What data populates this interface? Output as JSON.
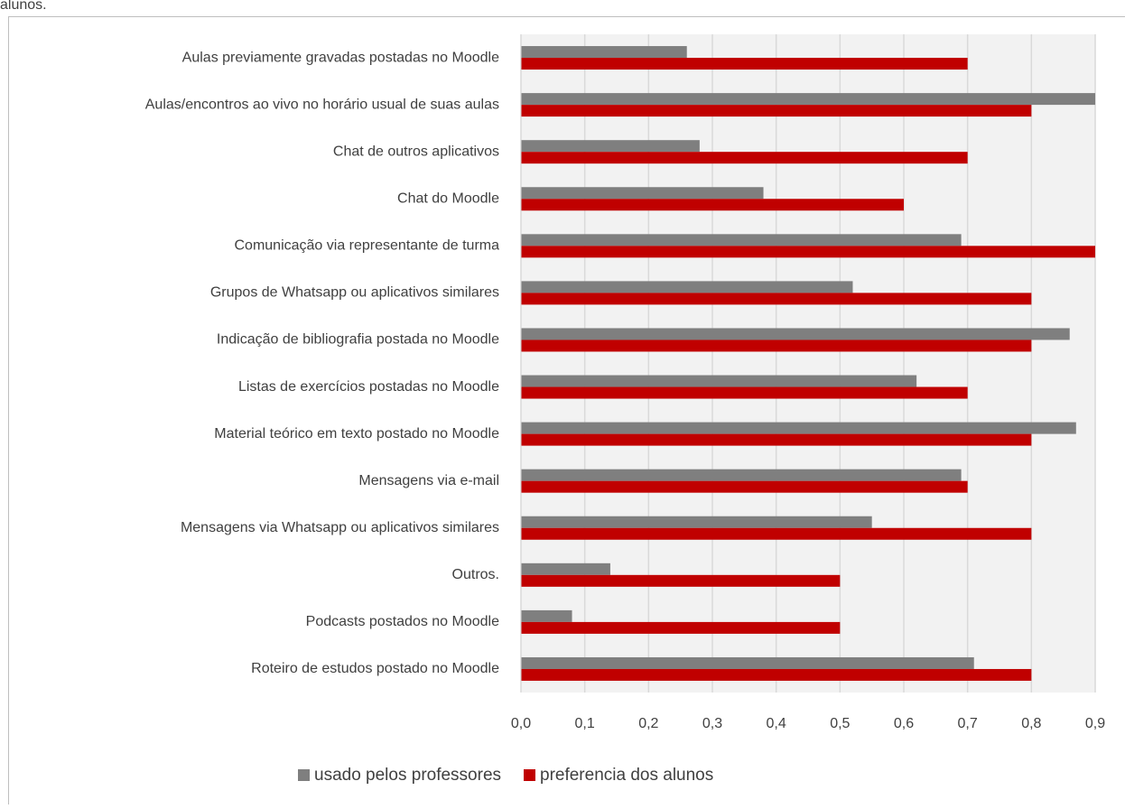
{
  "chart_data": {
    "type": "hbar",
    "caption": "alunos.",
    "categories": [
      "Aulas previamente gravadas postadas no Moodle",
      "Aulas/encontros ao vivo no horário usual de suas aulas",
      "Chat de outros aplicativos",
      "Chat do Moodle",
      "Comunicação via representante de turma",
      "Grupos de Whatsapp ou aplicativos similares",
      "Indicação de bibliografia postada no Moodle",
      "Listas de exercícios postadas no Moodle",
      "Material teórico em texto postado no Moodle",
      "Mensagens via e-mail",
      "Mensagens via Whatsapp ou aplicativos similares",
      "Outros.",
      "Podcasts postados no Moodle",
      "Roteiro de estudos postado no Moodle"
    ],
    "series": [
      {
        "name": "usado pelos professores",
        "color": "#7f7f7f",
        "values": [
          0.26,
          0.9,
          0.28,
          0.38,
          0.69,
          0.52,
          0.86,
          0.62,
          0.87,
          0.69,
          0.55,
          0.14,
          0.08,
          0.71
        ]
      },
      {
        "name": "preferencia dos alunos",
        "color": "#c00000",
        "values": [
          0.7,
          0.8,
          0.7,
          0.6,
          0.9,
          0.8,
          0.8,
          0.7,
          0.8,
          0.7,
          0.8,
          0.5,
          0.5,
          0.8
        ]
      }
    ],
    "xlim": [
      0,
      0.9
    ],
    "xticks": [
      {
        "value": 0,
        "label": "0,0"
      },
      {
        "value": 0.1,
        "label": "0,1"
      },
      {
        "value": 0.2,
        "label": "0,2"
      },
      {
        "value": 0.3,
        "label": "0,3"
      },
      {
        "value": 0.4,
        "label": "0,4"
      },
      {
        "value": 0.5,
        "label": "0,5"
      },
      {
        "value": 0.6,
        "label": "0,6"
      },
      {
        "value": 0.7,
        "label": "0,7"
      },
      {
        "value": 0.8,
        "label": "0,8"
      },
      {
        "value": 0.9,
        "label": "0,9"
      }
    ],
    "grid": true,
    "legend": "bottom",
    "plot_background": "#f2f2f2"
  }
}
